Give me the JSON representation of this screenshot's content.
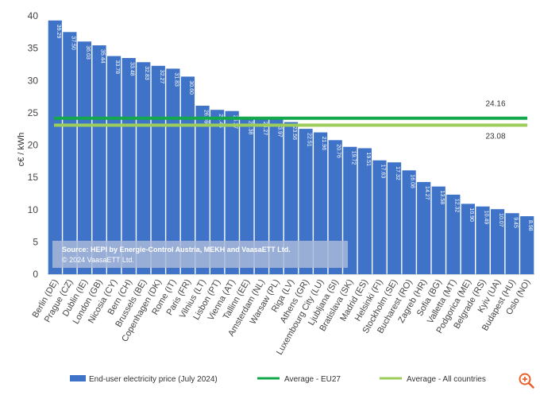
{
  "chart_data": {
    "type": "bar",
    "title": "",
    "xlabel": "",
    "ylabel": "c€ / kWh",
    "ylim": [
      0,
      40
    ],
    "yticks": [
      "0",
      "5",
      "10",
      "15",
      "20",
      "25",
      "30",
      "35",
      "40"
    ],
    "ytick_values": [
      0,
      5,
      10,
      15,
      20,
      25,
      30,
      35,
      40
    ],
    "categories": [
      "Berlin (DE)",
      "Prague (CZ)",
      "Dublin (IE)",
      "London (GB)",
      "Nicosia (CY)",
      "Bern (CH)",
      "Brussels (BE)",
      "Copenhagen (DK)",
      "Rome (IT)",
      "Paris (FR)",
      "Vilnius (LT)",
      "Lisbon (PT)",
      "Vienna (AT)",
      "Tallinn (EE)",
      "Amsterdam (NL)",
      "Warsaw (PL)",
      "Riga (LV)",
      "Athens (GR)",
      "Luxembourg City (LU)",
      "Ljubljana (SI)",
      "Bratislava (SK)",
      "Madrid (ES)",
      "Helsinki (FI)",
      "Stockholm (SE)",
      "Bucharest (RO)",
      "Zagreb (HR)",
      "Sofia (BG)",
      "Valletta (MT)",
      "Podgorica (ME)",
      "Belgrade (RS)",
      "Kyiv (UA)",
      "Budapest (HU)",
      "Oslo (NO)"
    ],
    "values": [
      39.29,
      37.5,
      36.03,
      35.44,
      33.78,
      33.48,
      32.83,
      32.27,
      31.83,
      30.6,
      26.09,
      25.45,
      25.27,
      24.38,
      24.27,
      23.97,
      23.56,
      22.51,
      21.96,
      20.76,
      19.72,
      19.51,
      17.63,
      17.32,
      16.08,
      14.27,
      13.58,
      12.32,
      10.9,
      10.49,
      10.07,
      9.45,
      8.98
    ],
    "value_labels": [
      "39.29",
      "37.50",
      "36.03",
      "35.44",
      "33.78",
      "33.48",
      "32.83",
      "32.27",
      "31.83",
      "30.60",
      "26.09",
      "25.45",
      "25.27",
      "24.38",
      "24.27",
      "23.97",
      "23.56",
      "22.51",
      "21.96",
      "20.76",
      "19.72",
      "19.51",
      "17.63",
      "17.32",
      "16.08",
      "14.27",
      "13.58",
      "12.32",
      "10.90",
      "10.49",
      "10.07",
      "9.45",
      "8.98"
    ],
    "averages": [
      {
        "name": "Average - EU27",
        "value": 24.16,
        "label": "24.16",
        "color": "#13a84b"
      },
      {
        "name": "Average - All countries",
        "value": 23.08,
        "label": "23.08",
        "color": "#9ccc5a"
      }
    ],
    "series_name": "End-user electricity price (July 2024)",
    "bar_color": "#3f73c7",
    "legend_position": "bottom",
    "source_line1": "Source: HEPI by Energie-Control Austria, MEKH and VaasaETT Ltd.",
    "source_line2": "© 2024 VaasaETT Ltd."
  },
  "zoom_icon": "zoom-in-icon",
  "accent_color": "#e8622c"
}
